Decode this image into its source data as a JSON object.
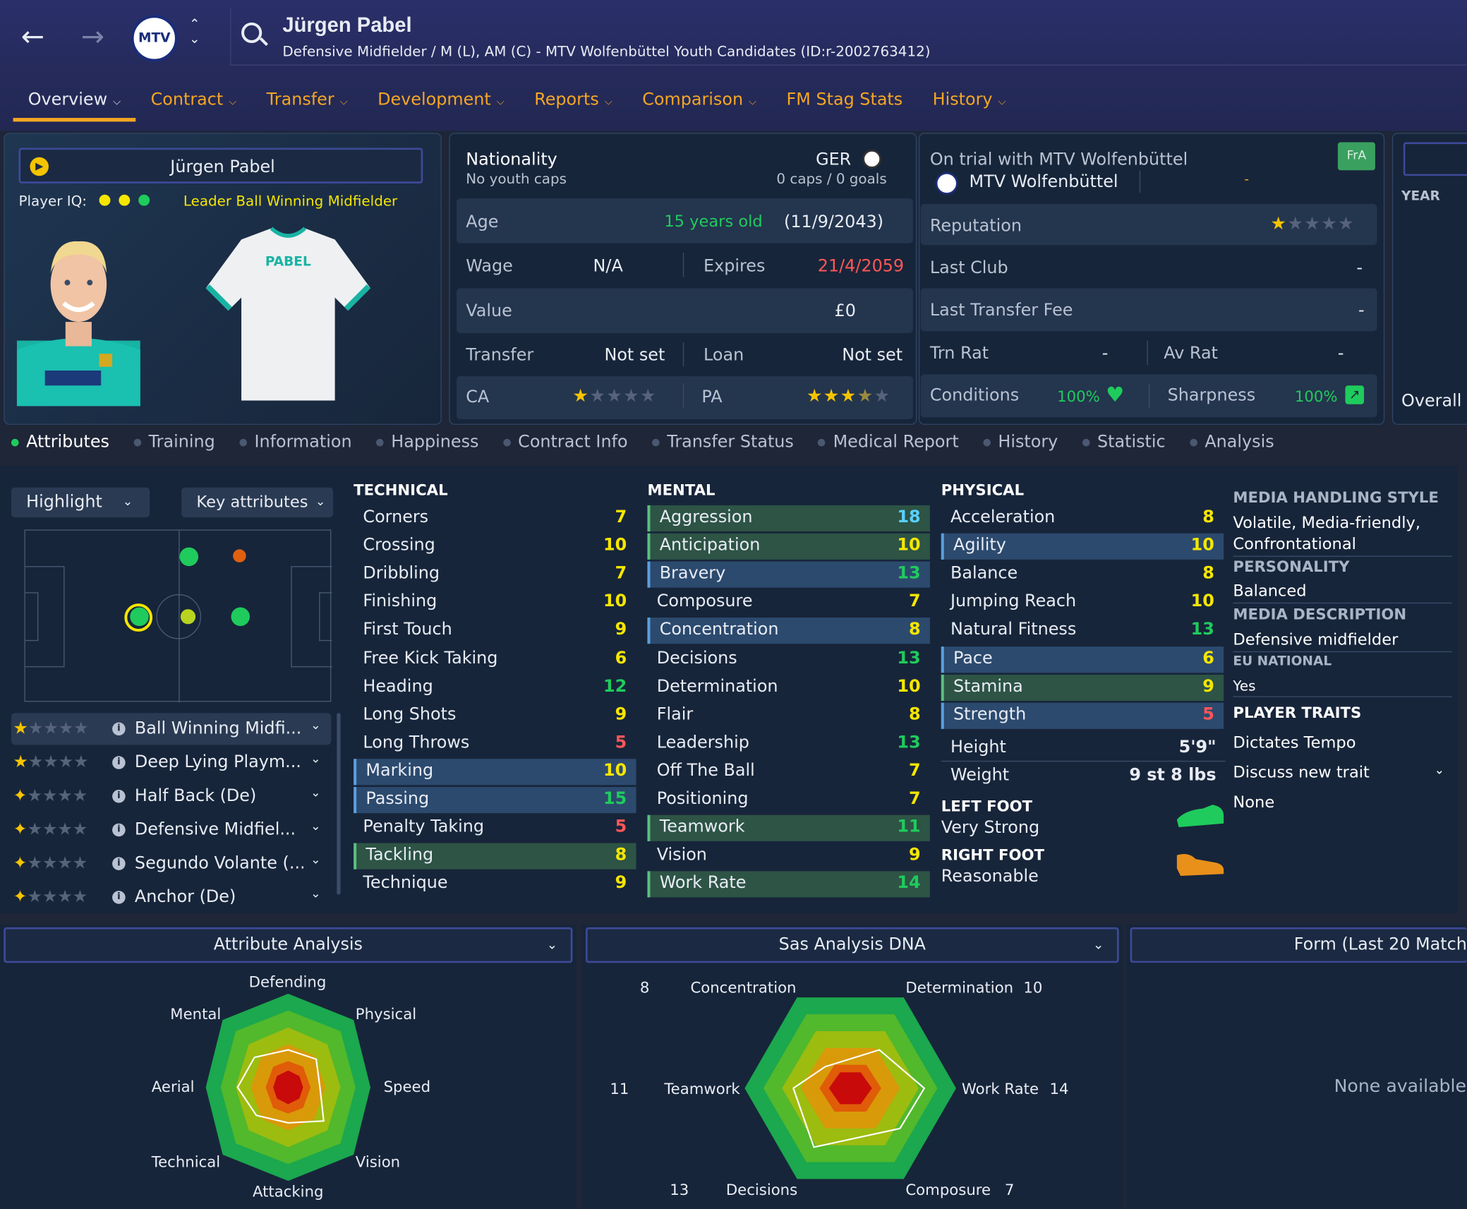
{
  "header": {
    "player_name": "Jürgen Pabel",
    "subtitle": "Defensive Midfielder / M (L), AM (C) - MTV Wolfenbüttel Youth Candidates (ID:r-2002763412)",
    "club_crest": "MTV"
  },
  "tabs": [
    {
      "label": "Overview",
      "dropdown": true
    },
    {
      "label": "Contract",
      "dropdown": true
    },
    {
      "label": "Transfer",
      "dropdown": true
    },
    {
      "label": "Development",
      "dropdown": true
    },
    {
      "label": "Reports",
      "dropdown": true
    },
    {
      "label": "Comparison",
      "dropdown": true
    },
    {
      "label": "FM Stag Stats",
      "dropdown": false
    },
    {
      "label": "History",
      "dropdown": true
    }
  ],
  "profile": {
    "name": "Jürgen Pabel",
    "iq_label": "Player IQ:",
    "role_text": "Leader  Ball Winning Midfielder",
    "shirt_name": "PABEL"
  },
  "info": {
    "nationality_label": "Nationality",
    "youth_caps": "No youth caps",
    "nation_code": "GER",
    "caps_goals": "0 caps / 0 goals",
    "age_label": "Age",
    "age_value": "15 years old",
    "dob": "(11/9/2043)",
    "wage_label": "Wage",
    "wage_value": "N/A",
    "expires_label": "Expires",
    "expires_value": "21/4/2059",
    "value_label": "Value",
    "value_value": "£0",
    "transfer_label": "Transfer",
    "transfer_value": "Not set",
    "loan_label": "Loan",
    "loan_value": "Not set",
    "ca_label": "CA",
    "pa_label": "PA",
    "ca_stars": 1,
    "pa_stars": 3.5
  },
  "club": {
    "trial_text": "On trial with MTV Wolfenbüttel",
    "club_name": "MTV Wolfenbüttel",
    "club_extra": "-",
    "badge": "FrA",
    "reputation_label": "Reputation",
    "reputation_stars": 1,
    "last_club_label": "Last Club",
    "last_club_value": "-",
    "last_fee_label": "Last Transfer Fee",
    "last_fee_value": "-",
    "trn_rat_label": "Trn Rat",
    "trn_rat_value": "-",
    "av_rat_label": "Av Rat",
    "av_rat_value": "-",
    "conditions_label": "Conditions",
    "conditions_value": "100%",
    "sharpness_label": "Sharpness",
    "sharpness_value": "100%"
  },
  "far_right": {
    "year_label": "YEAR",
    "overall_label": "Overall"
  },
  "subtabs": [
    "Attributes",
    "Training",
    "Information",
    "Happiness",
    "Contract Info",
    "Transfer Status",
    "Medical Report",
    "History",
    "Statistic",
    "Analysis"
  ],
  "controls": {
    "highlight": "Highlight",
    "key_attributes": "Key attributes"
  },
  "roles": [
    {
      "name": "Ball Winning Midfi...",
      "stars": 1
    },
    {
      "name": "Deep Lying Playm...",
      "stars": 1
    },
    {
      "name": "Half Back (De)",
      "stars": 0.5
    },
    {
      "name": "Defensive Midfiel...",
      "stars": 0.5
    },
    {
      "name": "Segundo Volante (...",
      "stars": 0.5
    },
    {
      "name": "Anchor (De)",
      "stars": 0.5
    }
  ],
  "technical": {
    "title": "TECHNICAL",
    "items": [
      {
        "name": "Corners",
        "value": "7",
        "hl": ""
      },
      {
        "name": "Crossing",
        "value": "10",
        "hl": ""
      },
      {
        "name": "Dribbling",
        "value": "7",
        "hl": ""
      },
      {
        "name": "Finishing",
        "value": "10",
        "hl": ""
      },
      {
        "name": "First Touch",
        "value": "9",
        "hl": ""
      },
      {
        "name": "Free Kick Taking",
        "value": "6",
        "hl": ""
      },
      {
        "name": "Heading",
        "value": "12",
        "hl": ""
      },
      {
        "name": "Long Shots",
        "value": "9",
        "hl": ""
      },
      {
        "name": "Long Throws",
        "value": "5",
        "hl": ""
      },
      {
        "name": "Marking",
        "value": "10",
        "hl": "blue"
      },
      {
        "name": "Passing",
        "value": "15",
        "hl": "blue"
      },
      {
        "name": "Penalty Taking",
        "value": "5",
        "hl": ""
      },
      {
        "name": "Tackling",
        "value": "8",
        "hl": "green"
      },
      {
        "name": "Technique",
        "value": "9",
        "hl": ""
      }
    ]
  },
  "mental": {
    "title": "MENTAL",
    "items": [
      {
        "name": "Aggression",
        "value": "18",
        "hl": "green"
      },
      {
        "name": "Anticipation",
        "value": "10",
        "hl": "green"
      },
      {
        "name": "Bravery",
        "value": "13",
        "hl": "blue"
      },
      {
        "name": "Composure",
        "value": "7",
        "hl": ""
      },
      {
        "name": "Concentration",
        "value": "8",
        "hl": "blue"
      },
      {
        "name": "Decisions",
        "value": "13",
        "hl": ""
      },
      {
        "name": "Determination",
        "value": "10",
        "hl": ""
      },
      {
        "name": "Flair",
        "value": "8",
        "hl": ""
      },
      {
        "name": "Leadership",
        "value": "13",
        "hl": ""
      },
      {
        "name": "Off The Ball",
        "value": "7",
        "hl": ""
      },
      {
        "name": "Positioning",
        "value": "7",
        "hl": ""
      },
      {
        "name": "Teamwork",
        "value": "11",
        "hl": "green"
      },
      {
        "name": "Vision",
        "value": "9",
        "hl": ""
      },
      {
        "name": "Work Rate",
        "value": "14",
        "hl": "green"
      }
    ]
  },
  "physical": {
    "title": "PHYSICAL",
    "items": [
      {
        "name": "Acceleration",
        "value": "8",
        "hl": ""
      },
      {
        "name": "Agility",
        "value": "10",
        "hl": "blue"
      },
      {
        "name": "Balance",
        "value": "8",
        "hl": ""
      },
      {
        "name": "Jumping Reach",
        "value": "10",
        "hl": ""
      },
      {
        "name": "Natural Fitness",
        "value": "13",
        "hl": ""
      },
      {
        "name": "Pace",
        "value": "6",
        "hl": "blue"
      },
      {
        "name": "Stamina",
        "value": "9",
        "hl": "green"
      },
      {
        "name": "Strength",
        "value": "5",
        "hl": "blue"
      }
    ],
    "height_label": "Height",
    "height_value": "5'9\"",
    "weight_label": "Weight",
    "weight_value": "9 st 8 lbs",
    "left_foot_label": "LEFT FOOT",
    "left_foot_value": "Very Strong",
    "right_foot_label": "RIGHT FOOT",
    "right_foot_value": "Reasonable"
  },
  "side_info": {
    "media_style_label": "MEDIA HANDLING STYLE",
    "media_style_value": "Volatile, Media-friendly, Confrontational",
    "personality_label": "PERSONALITY",
    "personality_value": "Balanced",
    "media_desc_label": "MEDIA DESCRIPTION",
    "media_desc_value": "Defensive midfielder",
    "eu_label": "EU NATIONAL",
    "eu_value": "Yes",
    "traits_label": "PLAYER TRAITS",
    "traits": [
      "Dictates Tempo",
      "Discuss new trait",
      "None"
    ]
  },
  "attribute_analysis": {
    "title": "Attribute Analysis",
    "labels": {
      "defending": "Defending",
      "physical": "Physical",
      "speed": "Speed",
      "vision": "Vision",
      "attacking": "Attacking",
      "technical": "Technical",
      "aerial": "Aerial",
      "mental": "Mental"
    }
  },
  "dna": {
    "title": "Sas Analysis DNA",
    "concentration": {
      "label": "Concentration",
      "value": "8"
    },
    "determination": {
      "label": "Determination",
      "value": "10"
    },
    "teamwork": {
      "label": "Teamwork",
      "value": "11"
    },
    "work_rate": {
      "label": "Work Rate",
      "value": "14"
    },
    "decisions": {
      "label": "Decisions",
      "value": "13"
    },
    "composure": {
      "label": "Composure",
      "value": "7"
    }
  },
  "form": {
    "title": "Form (Last 20 Match",
    "empty": "None available"
  },
  "colors": {
    "accent": "#f5a623",
    "green": "#1fcb5c",
    "red": "#ff5757",
    "yellow": "#f5e600"
  }
}
